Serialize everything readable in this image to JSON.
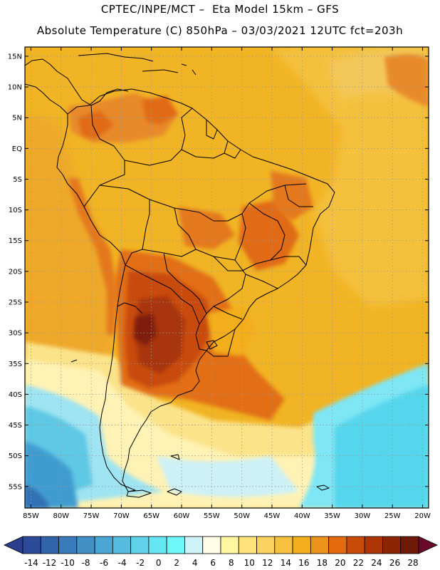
{
  "header": {
    "line1": "CPTEC/INPE/MCT –  Eta Model 15km – GFS",
    "line2": "Absolute Temperature (C) 850hPa – 03/03/2021 12UTC fct=203h"
  },
  "map": {
    "lon_range": [
      -86,
      -19
    ],
    "lat_range": [
      -58.5,
      16.5
    ],
    "lat_ticks": [
      {
        "v": 15,
        "label": "15N"
      },
      {
        "v": 10,
        "label": "10N"
      },
      {
        "v": 5,
        "label": "5N"
      },
      {
        "v": 0,
        "label": "EQ"
      },
      {
        "v": -5,
        "label": "5S"
      },
      {
        "v": -10,
        "label": "10S"
      },
      {
        "v": -15,
        "label": "15S"
      },
      {
        "v": -20,
        "label": "20S"
      },
      {
        "v": -25,
        "label": "25S"
      },
      {
        "v": -30,
        "label": "30S"
      },
      {
        "v": -35,
        "label": "35S"
      },
      {
        "v": -40,
        "label": "40S"
      },
      {
        "v": -45,
        "label": "45S"
      },
      {
        "v": -50,
        "label": "50S"
      },
      {
        "v": -55,
        "label": "55S"
      }
    ],
    "lon_ticks": [
      {
        "v": -85,
        "label": "85W"
      },
      {
        "v": -80,
        "label": "80W"
      },
      {
        "v": -75,
        "label": "75W"
      },
      {
        "v": -70,
        "label": "70W"
      },
      {
        "v": -65,
        "label": "65W"
      },
      {
        "v": -60,
        "label": "60W"
      },
      {
        "v": -55,
        "label": "55W"
      },
      {
        "v": -50,
        "label": "50W"
      },
      {
        "v": -45,
        "label": "45W"
      },
      {
        "v": -40,
        "label": "40W"
      },
      {
        "v": -35,
        "label": "35W"
      },
      {
        "v": -30,
        "label": "30W"
      },
      {
        "v": -25,
        "label": "25W"
      },
      {
        "v": -20,
        "label": "20W"
      }
    ],
    "gridlines": true
  },
  "colorbar": {
    "labels": [
      "-14",
      "-12",
      "-10",
      "-8",
      "-6",
      "-4",
      "-2",
      "0",
      "2",
      "4",
      "6",
      "8",
      "10",
      "12",
      "14",
      "16",
      "18",
      "20",
      "22",
      "24",
      "26",
      "28"
    ],
    "colors": [
      "#2b4a9a",
      "#3264aa",
      "#3a7cba",
      "#4291c6",
      "#4aa6d2",
      "#55bde0",
      "#5fd2ea",
      "#66e6f2",
      "#6ef8fa",
      "#cdf3f8",
      "#fffbe6",
      "#fff7a0",
      "#fde37a",
      "#fbd260",
      "#f6c13e",
      "#f3ae1c",
      "#eb931a",
      "#e46a0c",
      "#c84c08",
      "#ae3606",
      "#8e2406",
      "#6e1a08"
    ],
    "under_color": "#2b3e8e",
    "over_color": "#6a0a2a"
  }
}
